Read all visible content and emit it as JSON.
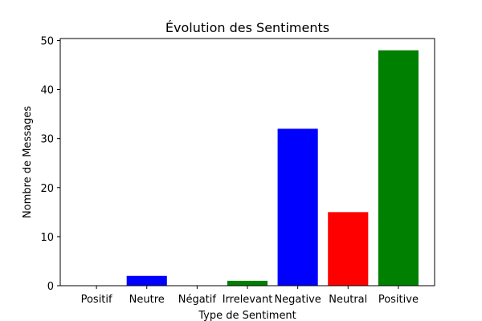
{
  "chart_data": {
    "type": "bar",
    "title": "Évolution des Sentiments",
    "xlabel": "Type de Sentiment",
    "ylabel": "Nombre de Messages",
    "categories": [
      "Positif",
      "Neutre",
      "Négatif",
      "Irrelevant",
      "Negative",
      "Neutral",
      "Positive"
    ],
    "values": [
      0,
      2,
      0,
      1,
      32,
      15,
      48
    ],
    "colors": [
      "#008000",
      "#0000ff",
      "#ff0000",
      "#008000",
      "#0000ff",
      "#ff0000",
      "#008000"
    ],
    "ylim": [
      0,
      50.4
    ],
    "yticks": [
      0,
      10,
      20,
      30,
      40,
      50
    ],
    "grid": false,
    "legend": "none"
  }
}
